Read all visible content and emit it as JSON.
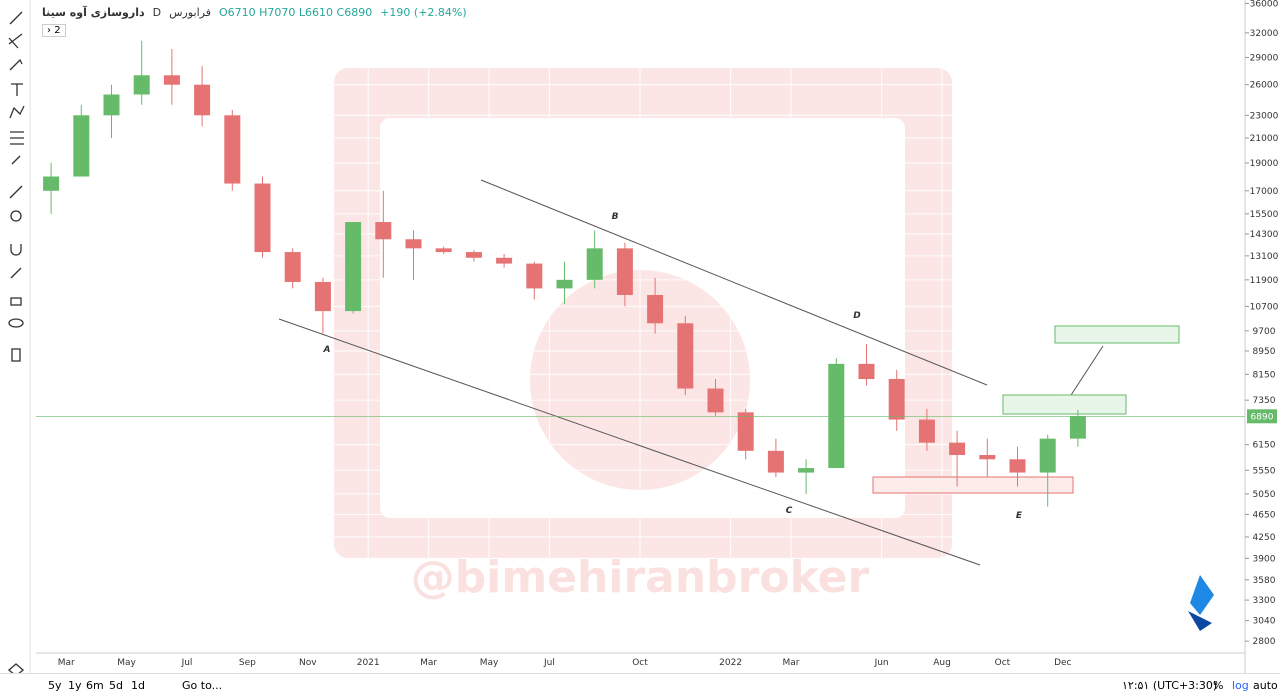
{
  "header": {
    "symbol": "داروسازی آوه سینا",
    "interval": "D",
    "exchange": "فرابورس",
    "ohlc": "O6710 H7070 L6610 C6890",
    "change": "+190 (+2.84%)",
    "indicators_count": "2"
  },
  "chart_data": {
    "type": "candlestick",
    "categories": [
      null,
      "Mar",
      null,
      "May",
      null,
      "Jul",
      null,
      "Sep",
      null,
      "Nov",
      null,
      "2021",
      null,
      "Mar",
      null,
      "May",
      null,
      "Jul",
      null,
      null,
      "Oct",
      null,
      null,
      "2022",
      null,
      "Mar",
      null,
      null,
      "Jun",
      null,
      "Aug",
      null,
      "Oct",
      null,
      "Dec"
    ],
    "open": [
      17000,
      18000,
      23000,
      25000,
      27000,
      26000,
      23000,
      17500,
      13300,
      11800,
      10500,
      15000,
      14000,
      13500,
      13300,
      13000,
      12700,
      11500,
      11900,
      13500,
      11200,
      10000,
      7700,
      7000,
      6000,
      5500,
      5600,
      8500,
      8000,
      6800,
      6200,
      5900,
      5800,
      5500,
      6300
    ],
    "high": [
      19000,
      24000,
      26000,
      31000,
      30000,
      28000,
      23500,
      18000,
      13500,
      12000,
      15000,
      17000,
      14500,
      13600,
      13400,
      13200,
      12800,
      12800,
      14500,
      13800,
      12000,
      10300,
      8000,
      7100,
      6300,
      5800,
      8700,
      9200,
      8300,
      7100,
      6500,
      6300,
      6100,
      6400,
      7070
    ],
    "low": [
      15500,
      18000,
      21000,
      24000,
      24000,
      22000,
      17000,
      13000,
      11500,
      9600,
      10400,
      12000,
      11900,
      13200,
      12800,
      12500,
      11000,
      10800,
      11500,
      10700,
      9600,
      7500,
      6900,
      5800,
      5400,
      5050,
      5600,
      7800,
      6500,
      6000,
      5200,
      5400,
      5200,
      4800,
      6100
    ],
    "close": [
      18000,
      23000,
      25000,
      27000,
      26000,
      23000,
      17500,
      13300,
      11800,
      10500,
      15000,
      14000,
      13500,
      13300,
      13000,
      12700,
      11500,
      11900,
      13500,
      11200,
      10000,
      7700,
      7000,
      6000,
      5500,
      5600,
      8500,
      8000,
      6800,
      6200,
      5900,
      5800,
      5500,
      6300,
      6890
    ],
    "up_color": "#66bb6a",
    "down_color": "#e57373",
    "log_scale": true,
    "ylim": [
      2670,
      36500
    ],
    "yticks": [
      36000,
      32000,
      29000,
      26000,
      23000,
      21000,
      19000,
      17000,
      15500,
      14300,
      13100,
      11900,
      10700,
      9700,
      8950,
      8150,
      7350,
      6150,
      5550,
      5050,
      4650,
      4250,
      3900,
      3580,
      3300,
      3040,
      2800
    ],
    "last_price": 6890,
    "annotations": [
      "A",
      "B",
      "C",
      "D",
      "E"
    ],
    "watermark": "@bimehiranbroker"
  },
  "footer": {
    "ranges": [
      "5y",
      "1y",
      "6m",
      "5d",
      "1d"
    ],
    "goto": "Go to...",
    "time": "۱۲:۵۱ (UTC+3:30)",
    "percent": "%",
    "log": "log",
    "auto": "auto"
  }
}
